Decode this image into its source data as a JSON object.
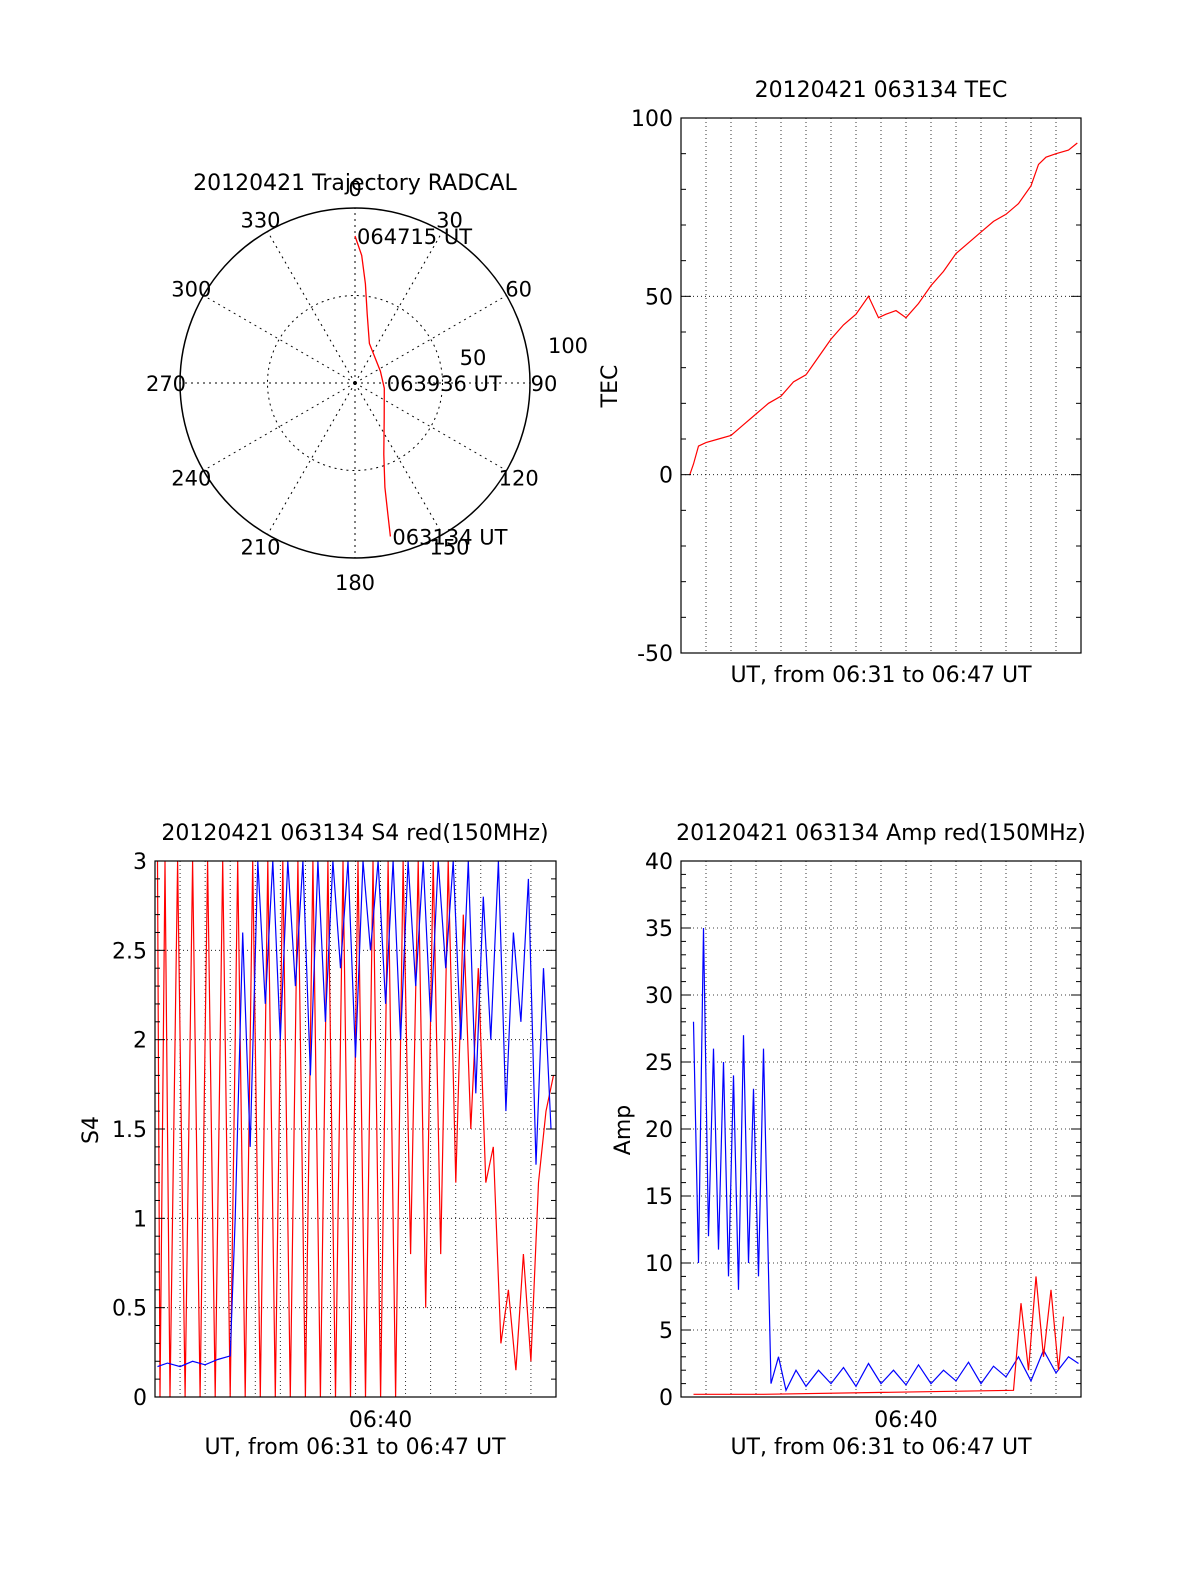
{
  "colors": {
    "red": "#ff0000",
    "blue": "#0000ff",
    "axis": "#000000",
    "grid": "#000000"
  },
  "chart_data": [
    {
      "id": "trajectory",
      "type": "polar",
      "title": "20120421 Trajectory RADCAL",
      "angle_ticks": [
        "0",
        "30",
        "60",
        "90",
        "120",
        "150",
        "180",
        "210",
        "240",
        "270",
        "300",
        "330"
      ],
      "radial_ticks": [
        {
          "value": 50,
          "label": "50"
        },
        {
          "value": 100,
          "label": "100"
        }
      ],
      "rmax": 100,
      "grid": true,
      "series": [
        {
          "color": "red",
          "points": [
            {
              "az": 0,
              "r": 84
            },
            {
              "az": 3,
              "r": 73
            },
            {
              "az": 6,
              "r": 57
            },
            {
              "az": 10,
              "r": 40
            },
            {
              "az": 20,
              "r": 24
            },
            {
              "az": 65,
              "r": 16
            },
            {
              "az": 100,
              "r": 17
            },
            {
              "az": 140,
              "r": 26
            },
            {
              "az": 158,
              "r": 44
            },
            {
              "az": 164,
              "r": 62
            },
            {
              "az": 166,
              "r": 78
            },
            {
              "az": 167,
              "r": 90
            }
          ]
        }
      ],
      "annotations": [
        {
          "text": "064715 UT",
          "az": 0,
          "r": 84
        },
        {
          "text": "063936 UT",
          "az": 90,
          "r": 17
        },
        {
          "text": "063134 UT",
          "az": 167,
          "r": 90
        }
      ]
    },
    {
      "id": "tec",
      "type": "line",
      "title": "20120421 063134 TEC",
      "ylabel": "TEC",
      "xlabel": "UT, from 06:31 to 06:47 UT",
      "xlim": [
        0,
        16
      ],
      "ylim": [
        -50,
        100
      ],
      "yticks": [
        -50,
        0,
        50,
        100
      ],
      "xticks": [],
      "grid": true,
      "series": [
        {
          "color": "red",
          "x": [
            0.35,
            0.5,
            0.7,
            1.0,
            1.5,
            2.0,
            2.5,
            3.0,
            3.5,
            4.0,
            4.5,
            5.0,
            5.5,
            6.0,
            6.5,
            7.0,
            7.5,
            7.9,
            8.2,
            8.6,
            9.0,
            9.5,
            10.0,
            10.5,
            11.0,
            11.5,
            12.0,
            12.5,
            13.0,
            13.5,
            14.0,
            14.3,
            14.6,
            15.0,
            15.5,
            15.85
          ],
          "values": [
            0,
            3,
            8,
            9,
            10,
            11,
            14,
            17,
            20,
            22,
            26,
            28,
            33,
            38,
            42,
            45,
            50,
            44,
            45,
            46,
            44,
            48,
            53,
            57,
            62,
            65,
            68,
            71,
            73,
            76,
            81,
            87,
            89,
            90,
            91,
            93
          ]
        }
      ]
    },
    {
      "id": "s4",
      "type": "line",
      "title": "20120421 063134 S4 red(150MHz)",
      "ylabel": "S4",
      "xlabel": "UT, from 06:31 to 06:47 UT",
      "xlim": [
        0,
        16
      ],
      "ylim": [
        0,
        3
      ],
      "yticks": [
        0,
        0.5,
        1,
        1.5,
        2,
        2.5,
        3
      ],
      "xticks": [
        {
          "value": 9,
          "label": "06:40"
        }
      ],
      "grid": true,
      "series": [
        {
          "color": "red",
          "note": "dense noisy trace",
          "x": [
            0.1,
            0.2,
            0.4,
            0.6,
            0.9,
            1.2,
            1.5,
            1.8,
            2.1,
            2.4,
            2.7,
            3.0,
            3.3,
            3.6,
            3.9,
            4.2,
            4.5,
            4.8,
            5.1,
            5.4,
            5.7,
            6.0,
            6.3,
            6.6,
            6.9,
            7.2,
            7.5,
            7.8,
            8.1,
            8.4,
            8.7,
            9.0,
            9.3,
            9.6,
            9.9,
            10.2,
            10.5,
            10.8,
            11.1,
            11.4,
            11.7,
            12.0,
            12.3,
            12.6,
            12.9,
            13.2,
            13.5,
            13.8,
            14.1,
            14.4,
            14.7,
            15.0,
            15.3,
            15.6,
            15.9
          ],
          "values": [
            3,
            0,
            3,
            0,
            3,
            0,
            3,
            0,
            3,
            0,
            3,
            0,
            3,
            0,
            3,
            0,
            3,
            0,
            3,
            0,
            3,
            0,
            3,
            0,
            3,
            0,
            3,
            0,
            3,
            0,
            3,
            0,
            3,
            0,
            3,
            0.8,
            3,
            0.5,
            3,
            0.8,
            3,
            1.2,
            2.7,
            1.5,
            2.4,
            1.2,
            1.4,
            0.3,
            0.6,
            0.15,
            0.8,
            0.2,
            1.2,
            1.6,
            1.8
          ]
        },
        {
          "color": "blue",
          "note": "dense noisy trace",
          "x": [
            0.1,
            0.5,
            1.0,
            1.5,
            2.0,
            2.5,
            3.0,
            3.2,
            3.5,
            3.8,
            4.1,
            4.4,
            4.7,
            5.0,
            5.3,
            5.6,
            5.9,
            6.2,
            6.5,
            6.8,
            7.1,
            7.4,
            7.7,
            8.0,
            8.3,
            8.6,
            8.9,
            9.2,
            9.5,
            9.8,
            10.1,
            10.4,
            10.7,
            11.0,
            11.3,
            11.6,
            11.9,
            12.2,
            12.5,
            12.8,
            13.1,
            13.4,
            13.7,
            14.0,
            14.3,
            14.6,
            14.9,
            15.2,
            15.5,
            15.8
          ],
          "values": [
            0.17,
            0.19,
            0.17,
            0.2,
            0.18,
            0.21,
            0.23,
            1.0,
            2.6,
            1.4,
            3,
            2.2,
            3,
            2.0,
            3,
            2.3,
            3,
            1.8,
            3,
            2.1,
            3,
            2.4,
            3,
            1.9,
            3,
            2.5,
            3,
            2.2,
            3,
            2.0,
            3,
            2.3,
            3,
            2.1,
            3,
            2.4,
            3,
            2.0,
            3,
            1.7,
            2.8,
            2.0,
            3,
            1.6,
            2.6,
            2.1,
            2.9,
            1.3,
            2.4,
            1.5
          ]
        }
      ]
    },
    {
      "id": "amp",
      "type": "line",
      "title": "20120421 063134 Amp red(150MHz)",
      "ylabel": "Amp",
      "xlabel": "UT, from 06:31 to 06:47 UT",
      "xlim": [
        0,
        16
      ],
      "ylim": [
        0,
        40
      ],
      "yticks": [
        0,
        5,
        10,
        15,
        20,
        25,
        30,
        35,
        40
      ],
      "xticks": [
        {
          "value": 9,
          "label": "06:40"
        }
      ],
      "grid": true,
      "series": [
        {
          "color": "blue",
          "note": "dense noisy trace",
          "x": [
            0.5,
            0.7,
            0.9,
            1.1,
            1.3,
            1.5,
            1.7,
            1.9,
            2.1,
            2.3,
            2.5,
            2.7,
            2.9,
            3.1,
            3.3,
            3.6,
            3.9,
            4.2,
            4.6,
            5.0,
            5.5,
            6.0,
            6.5,
            7.0,
            7.5,
            8.0,
            8.5,
            9.0,
            9.5,
            10.0,
            10.5,
            11.0,
            11.5,
            12.0,
            12.5,
            13.0,
            13.5,
            14.0,
            14.5,
            15.0,
            15.5,
            15.9
          ],
          "values": [
            28,
            10,
            35,
            12,
            26,
            11,
            25,
            9,
            24,
            8,
            27,
            10,
            23,
            9,
            26,
            1,
            3,
            0.5,
            2,
            0.8,
            2,
            1,
            2.2,
            0.8,
            2.5,
            1,
            2,
            0.9,
            2.4,
            1,
            2,
            1.2,
            2.6,
            1,
            2.3,
            1.5,
            3,
            1.2,
            3.5,
            1.8,
            3,
            2.5
          ]
        },
        {
          "color": "red",
          "note": "dense noisy trace",
          "x": [
            0.5,
            1.0,
            1.5,
            2.0,
            2.5,
            3.0,
            3.3,
            13.3,
            13.6,
            13.9,
            14.2,
            14.5,
            14.8,
            15.1,
            15.3
          ],
          "values": [
            0.2,
            0.2,
            0.2,
            0.2,
            0.2,
            0.2,
            0.2,
            0.5,
            7,
            2,
            9,
            3,
            8,
            2,
            6
          ]
        }
      ]
    }
  ]
}
